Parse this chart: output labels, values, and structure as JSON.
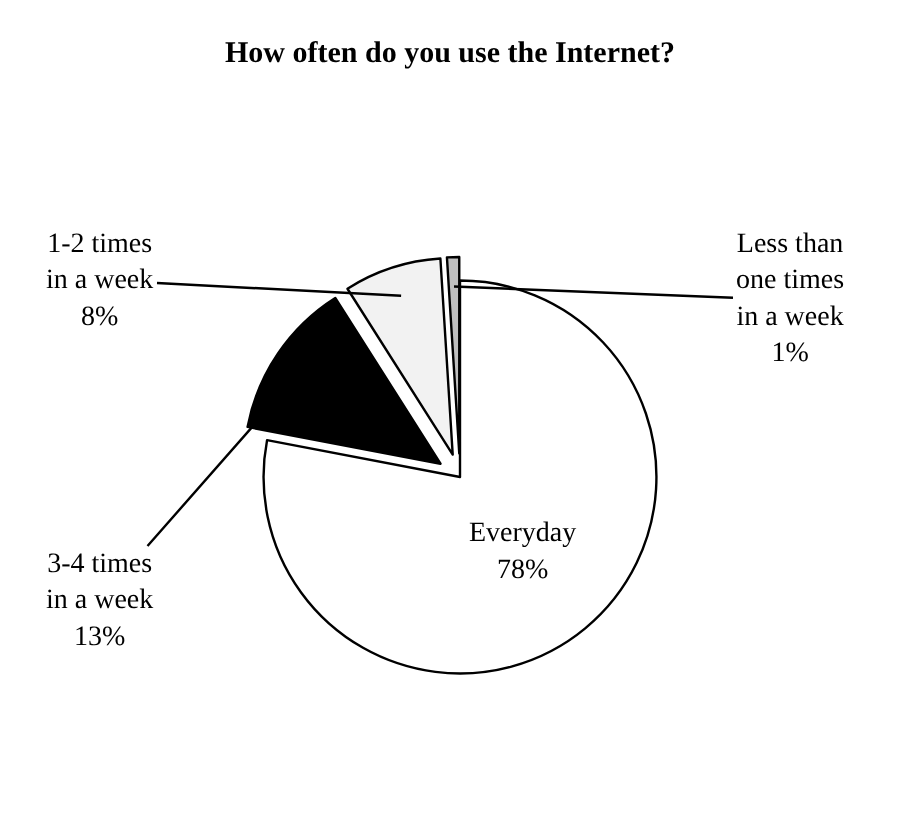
{
  "chart_data": {
    "type": "pie",
    "title": "How often do you use the Internet?",
    "categories": [
      "Everyday",
      "3-4 times in a week",
      "1-2 times in a week",
      "Less than one times in a week"
    ],
    "values": [
      78,
      13,
      8,
      1
    ],
    "colors": [
      "#ffffff",
      "#000000",
      "#f2f2f2",
      "#bfbfbf"
    ],
    "value_labels": [
      "78%",
      "13%",
      "8%",
      "1%"
    ],
    "legend": false
  }
}
